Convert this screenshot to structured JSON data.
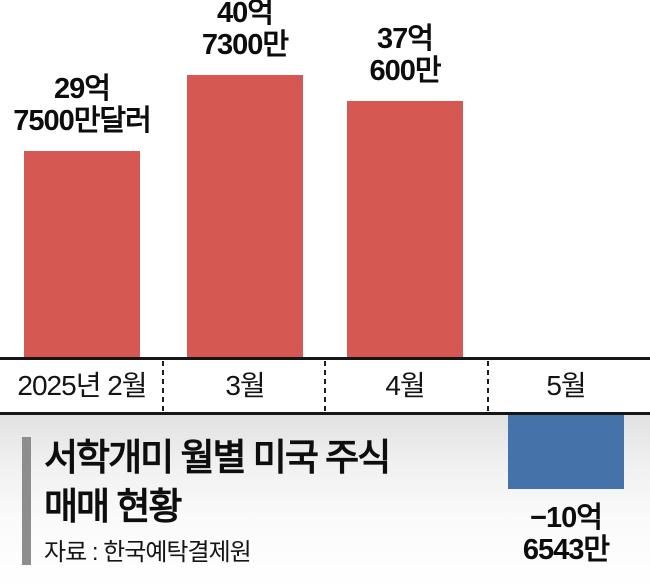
{
  "title": {
    "line1": "서학개미 월별 미국 주식",
    "line2": "매매 현황"
  },
  "source": "자료 : 한국예탁결제원",
  "colors": {
    "positive_bar": "#d65852",
    "negative_bar": "#4573a9",
    "axis_line": "#161616",
    "accent_bar": "#8d8d8d",
    "text": "#111111"
  },
  "chart_data": {
    "type": "bar",
    "title": "서학개미 월별 미국 주식 매매 현황",
    "source": "자료 : 한국예탁결제원",
    "unit": "억달러",
    "categories": [
      "2025년 2월",
      "3월",
      "4월",
      "5월"
    ],
    "values": [
      29.75,
      40.73,
      37.06,
      -10.6543
    ],
    "value_labels": [
      [
        "29억",
        "7500만달러"
      ],
      [
        "40억",
        "7300만"
      ],
      [
        "37억",
        "600만"
      ],
      [
        "−10억",
        "6543만"
      ]
    ],
    "bar_colors": [
      "#d65852",
      "#d65852",
      "#d65852",
      "#4573a9"
    ],
    "ylim": [
      -12,
      42
    ],
    "grid": false,
    "legend": false
  }
}
